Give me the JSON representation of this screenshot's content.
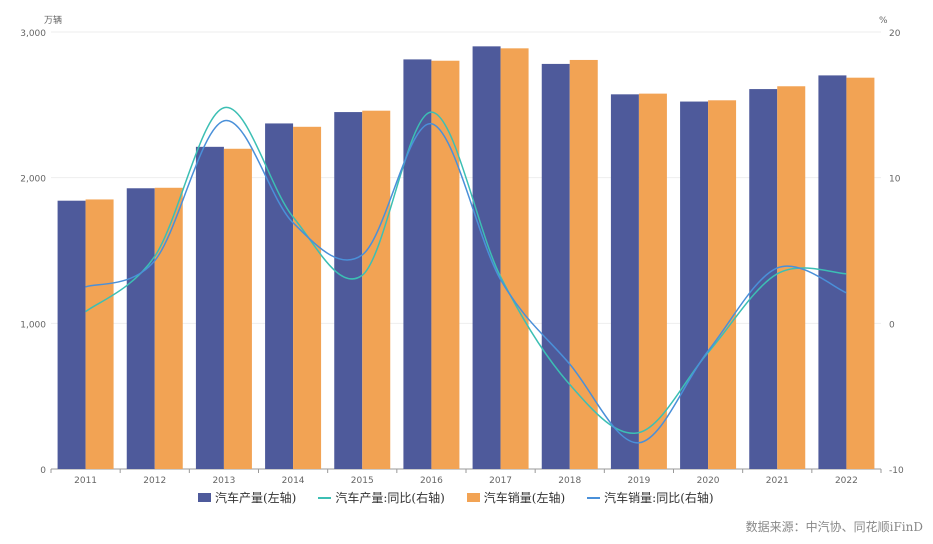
{
  "chart_data": {
    "type": "bar",
    "categories": [
      "2011",
      "2012",
      "2013",
      "2014",
      "2015",
      "2016",
      "2017",
      "2018",
      "2019",
      "2020",
      "2021",
      "2022"
    ],
    "left_axis": {
      "unit": "万辆",
      "ylim": [
        0,
        3000
      ],
      "ticks": [
        "0",
        "1,000",
        "2,000",
        "3,000"
      ],
      "tick_values": [
        0,
        1000,
        2000,
        3000
      ]
    },
    "right_axis": {
      "unit": "%",
      "ylim": [
        -10,
        20
      ],
      "ticks": [
        "-10",
        "0",
        "10",
        "20"
      ],
      "tick_values": [
        -10,
        0,
        10,
        20
      ]
    },
    "series": [
      {
        "name": "汽车产量(左轴)",
        "type": "bar",
        "axis": "left",
        "color": "#4e5a9b",
        "values": [
          1841.9,
          1927.2,
          2211.7,
          2372.3,
          2450.3,
          2811.9,
          2901.5,
          2780.9,
          2572.1,
          2522.5,
          2608.2,
          2702.1
        ]
      },
      {
        "name": "汽车产量:同比(右轴)",
        "type": "line",
        "axis": "right",
        "color": "#3cbfb4",
        "values": [
          0.8,
          4.6,
          14.8,
          7.3,
          3.3,
          14.5,
          3.2,
          -4.2,
          -7.5,
          -2.0,
          3.4,
          3.4
        ]
      },
      {
        "name": "汽车销量(左轴)",
        "type": "bar",
        "axis": "left",
        "color": "#f2a354",
        "values": [
          1850.5,
          1930.6,
          2198.4,
          2349.2,
          2459.8,
          2802.8,
          2887.9,
          2808.1,
          2576.9,
          2531.1,
          2627.5,
          2686.4
        ]
      },
      {
        "name": "汽车销量:同比(右轴)",
        "type": "line",
        "axis": "right",
        "color": "#4a90d9",
        "values": [
          2.5,
          4.3,
          13.9,
          6.9,
          4.7,
          13.7,
          3.0,
          -2.8,
          -8.2,
          -1.9,
          3.8,
          2.1
        ]
      }
    ],
    "legend": "bottom",
    "grid": true
  },
  "source": "数据来源：中汽协、同花顺iFinD"
}
